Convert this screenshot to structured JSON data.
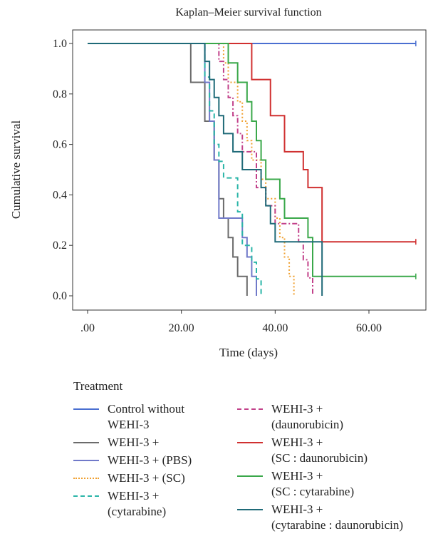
{
  "chart_data": {
    "type": "line",
    "step": true,
    "title": "Kaplan–Meier survival function",
    "xlabel": "Time (days)",
    "ylabel": "Cumulative survival",
    "xlim": [
      0,
      72
    ],
    "ylim": [
      0,
      1.0
    ],
    "xticks": [
      0,
      20,
      40,
      60
    ],
    "xtick_labels": [
      ".00",
      "20.00",
      "40.00",
      "60.00"
    ],
    "yticks": [
      0,
      0.2,
      0.4,
      0.6,
      0.8,
      1.0
    ],
    "ytick_labels": [
      "0.0",
      "0.2",
      "0.4",
      "0.6",
      "0.8",
      "1.0"
    ],
    "grid": false,
    "legend_title": "Treatment",
    "legend_position": "bottom",
    "series": [
      {
        "name": "Control without\nWEHI-3",
        "color": "#4a6fd1",
        "dash": "solid",
        "x": [
          0,
          70
        ],
        "y": [
          1.0,
          1.0
        ],
        "censored": [
          70
        ]
      },
      {
        "name": "WEHI-3 +",
        "color": "#6b6b6b",
        "dash": "solid",
        "x": [
          0,
          22,
          25,
          27,
          28,
          29,
          30,
          31,
          32,
          34
        ],
        "y": [
          1.0,
          0.846,
          0.692,
          0.538,
          0.385,
          0.308,
          0.231,
          0.154,
          0.077,
          0.0
        ],
        "censored": []
      },
      {
        "name": "WEHI-3 + (PBS)",
        "color": "#7079c9",
        "dash": "solid",
        "x": [
          0,
          25,
          26,
          27,
          28,
          33,
          34,
          35,
          36
        ],
        "y": [
          1.0,
          0.846,
          0.692,
          0.538,
          0.308,
          0.231,
          0.154,
          0.077,
          0.0
        ],
        "censored": []
      },
      {
        "name": "WEHI-3 + (SC)",
        "color": "#f0a030",
        "dash": "dotted",
        "x": [
          0,
          29,
          30,
          32,
          33,
          34,
          35,
          37,
          38,
          40,
          41,
          42,
          43,
          44
        ],
        "y": [
          1.0,
          0.923,
          0.846,
          0.769,
          0.692,
          0.615,
          0.538,
          0.462,
          0.385,
          0.308,
          0.231,
          0.154,
          0.077,
          0.0
        ],
        "censored": []
      },
      {
        "name": "WEHI-3 +\n(cytarabine)",
        "color": "#2ab5a8",
        "dash": "dashed",
        "x": [
          0,
          25,
          26,
          27,
          28,
          29,
          32,
          33,
          35,
          36,
          37
        ],
        "y": [
          1.0,
          0.867,
          0.733,
          0.6,
          0.533,
          0.467,
          0.333,
          0.2,
          0.133,
          0.067,
          0.0
        ],
        "censored": []
      },
      {
        "name": "WEHI-3 +\n(daunorubicin)",
        "color": "#c2418a",
        "dash": "dashdot",
        "x": [
          0,
          28,
          29,
          30,
          31,
          32,
          33,
          36,
          38,
          40,
          45,
          46,
          47,
          48
        ],
        "y": [
          1.0,
          0.929,
          0.857,
          0.786,
          0.714,
          0.643,
          0.571,
          0.429,
          0.357,
          0.286,
          0.214,
          0.143,
          0.071,
          0.0
        ],
        "censored": []
      },
      {
        "name": "WEHI-3 +\n(SC : daunorubicin)",
        "color": "#d03030",
        "dash": "solid",
        "x": [
          0,
          35,
          39,
          42,
          46,
          47,
          50
        ],
        "y": [
          1.0,
          0.857,
          0.714,
          0.571,
          0.5,
          0.429,
          0.214
        ],
        "censored": [
          70
        ]
      },
      {
        "name": "WEHI-3 +\n(SC : cytarabine)",
        "color": "#3aa84a",
        "dash": "solid",
        "x": [
          0,
          30,
          32,
          34,
          35,
          36,
          37,
          38,
          41,
          42,
          47,
          48
        ],
        "y": [
          1.0,
          0.923,
          0.846,
          0.769,
          0.692,
          0.615,
          0.538,
          0.462,
          0.385,
          0.308,
          0.231,
          0.077
        ],
        "censored": [
          70
        ]
      },
      {
        "name": "WEHI-3 +\n(cytarabine : daunorubicin)",
        "color": "#1f6a78",
        "dash": "solid",
        "x": [
          0,
          25,
          26,
          27,
          28,
          29,
          31,
          33,
          37,
          38,
          39,
          40,
          42,
          50
        ],
        "y": [
          1.0,
          0.929,
          0.857,
          0.786,
          0.714,
          0.643,
          0.571,
          0.5,
          0.429,
          0.357,
          0.286,
          0.214,
          0.214,
          0.0
        ],
        "censored": []
      }
    ]
  }
}
